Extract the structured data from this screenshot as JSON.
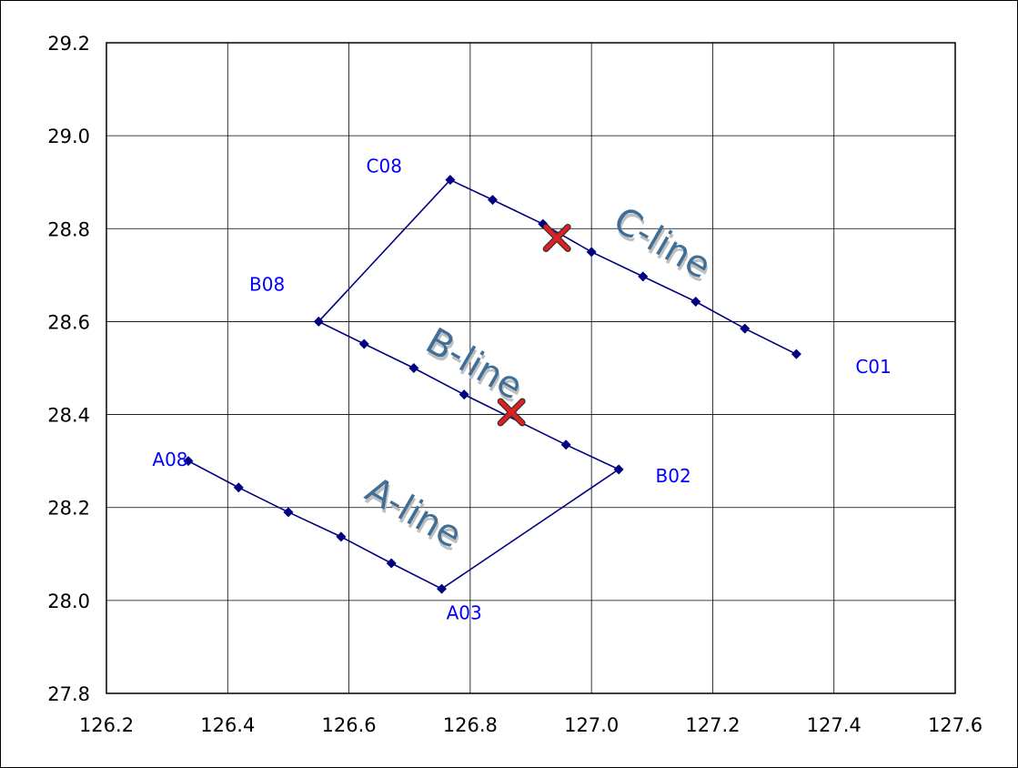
{
  "chart_data": {
    "type": "scatter",
    "title": "",
    "xlabel": "",
    "ylabel": "",
    "xlim": [
      126.2,
      127.6
    ],
    "ylim": [
      27.8,
      29.2
    ],
    "grid": true,
    "x_ticks": [
      "126.2",
      "126.4",
      "126.6",
      "126.8",
      "127.0",
      "127.2",
      "127.4",
      "127.6"
    ],
    "y_ticks": [
      "27.8",
      "28.0",
      "28.2",
      "28.4",
      "28.6",
      "28.8",
      "29.0",
      "29.2"
    ],
    "x_tick_values": [
      126.2,
      126.4,
      126.6,
      126.8,
      127.0,
      127.2,
      127.4,
      127.6
    ],
    "y_tick_values": [
      27.8,
      28.0,
      28.2,
      28.4,
      28.6,
      28.8,
      29.0,
      29.2
    ],
    "colors": {
      "line": "#000080",
      "marker": "#000080",
      "point_label": "#0000ff",
      "line_label": "#3f6e96",
      "line_label_shadow": "#bfbfbf",
      "cross_fill": "#e02020",
      "cross_outline": "#333333",
      "grid": "#000000"
    },
    "path": {
      "x": [
        126.335,
        126.418,
        126.5,
        126.587,
        126.67,
        126.753,
        127.045,
        126.958,
        126.79,
        126.707,
        126.625,
        126.55,
        126.767,
        126.837,
        126.92,
        127.0,
        127.085,
        127.172,
        127.253,
        127.338
      ],
      "y": [
        28.3,
        28.243,
        28.19,
        28.137,
        28.08,
        28.025,
        28.282,
        28.335,
        28.443,
        28.5,
        28.552,
        28.6,
        28.905,
        28.862,
        28.81,
        28.75,
        28.697,
        28.643,
        28.585,
        28.53
      ]
    },
    "point_labels": [
      {
        "text": "A08",
        "x": 126.305,
        "y": 28.3
      },
      {
        "text": "A03",
        "x": 126.79,
        "y": 27.97
      },
      {
        "text": "B02",
        "x": 127.135,
        "y": 28.265
      },
      {
        "text": "B08",
        "x": 126.465,
        "y": 28.677
      },
      {
        "text": "C08",
        "x": 126.658,
        "y": 28.932
      },
      {
        "text": "C01",
        "x": 127.465,
        "y": 28.5
      }
    ],
    "line_labels": [
      {
        "text": "A-line",
        "x": 126.705,
        "y": 28.185
      },
      {
        "text": "B-line",
        "x": 126.805,
        "y": 28.505
      },
      {
        "text": "C-line",
        "x": 127.115,
        "y": 28.765
      }
    ],
    "crosses": [
      {
        "x": 126.943,
        "y": 28.78
      },
      {
        "x": 126.868,
        "y": 28.405
      }
    ]
  }
}
